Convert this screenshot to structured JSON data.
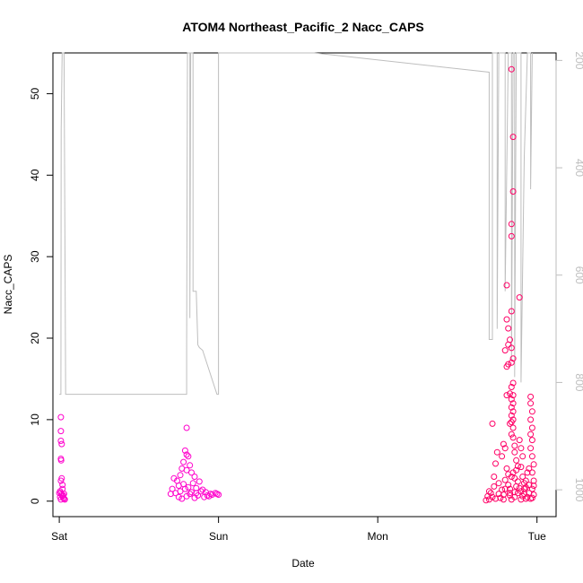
{
  "chart_data": {
    "type": "scatter",
    "title": "ATOM4 Northeast_Pacific_2 Nacc_CAPS",
    "xlabel": "Date",
    "ylabel": "Nacc_CAPS",
    "x_tick_labels": [
      "Sat",
      "Sun",
      "Mon",
      "Tue"
    ],
    "x_tick_days": [
      0,
      1,
      2,
      3
    ],
    "xlim_days": [
      -0.04,
      3.12
    ],
    "ylim": [
      -1.9,
      55
    ],
    "y_ticks": [
      0,
      10,
      20,
      30,
      40,
      50
    ],
    "y2_ticks": [
      200,
      400,
      600,
      800,
      1000
    ],
    "y2lim_reversed": [
      1050,
      186
    ],
    "grid": false,
    "legend": "none",
    "colors": {
      "points_low": "#ff00cc",
      "points_high": "#ff0066",
      "altitude_line": "#bebebe",
      "axis": "#000000"
    },
    "series": [
      {
        "type": "scatter",
        "points": [
          [
            0.01,
            10.3
          ],
          [
            0.01,
            8.6
          ],
          [
            0.01,
            7.4
          ],
          [
            0.015,
            7.0
          ],
          [
            0.01,
            5.2
          ],
          [
            0.012,
            5.0
          ],
          [
            0.015,
            2.8
          ],
          [
            0.01,
            2.5
          ],
          [
            0.02,
            2.0
          ],
          [
            0.005,
            1.2
          ],
          [
            0.01,
            1.0
          ],
          [
            0.015,
            0.8
          ],
          [
            0.02,
            0.6
          ],
          [
            0.025,
            0.4
          ],
          [
            0.03,
            0.3
          ],
          [
            0.005,
            0.5
          ],
          [
            0.01,
            0.2
          ],
          [
            0.02,
            1.5
          ],
          [
            0.03,
            0.9
          ],
          [
            0.035,
            0.2
          ],
          [
            0.0,
            1.0
          ],
          [
            0.025,
            0.7
          ],
          [
            0.8,
            9.0
          ],
          [
            0.79,
            6.2
          ],
          [
            0.8,
            5.7
          ],
          [
            0.81,
            5.5
          ],
          [
            0.78,
            4.8
          ],
          [
            0.77,
            4.0
          ],
          [
            0.82,
            4.4
          ],
          [
            0.8,
            3.8
          ],
          [
            0.83,
            3.5
          ],
          [
            0.85,
            3.0
          ],
          [
            0.76,
            3.2
          ],
          [
            0.74,
            2.5
          ],
          [
            0.72,
            2.8
          ],
          [
            0.75,
            1.9
          ],
          [
            0.78,
            2.1
          ],
          [
            0.79,
            1.5
          ],
          [
            0.81,
            1.7
          ],
          [
            0.84,
            2.2
          ],
          [
            0.86,
            1.6
          ],
          [
            0.88,
            2.4
          ],
          [
            0.9,
            1.4
          ],
          [
            0.92,
            1.1
          ],
          [
            0.95,
            0.9
          ],
          [
            0.98,
            1.0
          ],
          [
            1.0,
            0.8
          ],
          [
            0.73,
            1.0
          ],
          [
            0.75,
            0.5
          ],
          [
            0.77,
            0.3
          ],
          [
            0.8,
            0.6
          ],
          [
            0.82,
            0.9
          ],
          [
            0.85,
            0.4
          ],
          [
            0.87,
            0.7
          ],
          [
            0.89,
            1.2
          ],
          [
            0.91,
            0.5
          ],
          [
            0.94,
            0.6
          ],
          [
            0.96,
            0.8
          ],
          [
            0.99,
            0.9
          ],
          [
            0.71,
            1.5
          ],
          [
            0.7,
            0.9
          ],
          [
            0.76,
            1.2
          ],
          [
            0.83,
            1.1
          ],
          [
            0.86,
            1.0
          ],
          [
            0.93,
            0.7
          ],
          [
            2.72,
            9.5
          ],
          [
            2.75,
            6.0
          ],
          [
            2.74,
            4.6
          ],
          [
            2.73,
            3.0
          ],
          [
            2.71,
            1.0
          ],
          [
            2.7,
            0.2
          ],
          [
            2.72,
            0.5
          ],
          [
            2.76,
            2.2
          ],
          [
            2.78,
            5.5
          ],
          [
            2.79,
            7.0
          ],
          [
            2.8,
            6.5
          ],
          [
            2.81,
            4.0
          ],
          [
            2.82,
            2.0
          ],
          [
            2.83,
            1.0
          ],
          [
            2.77,
            0.4
          ],
          [
            2.79,
            0.8
          ],
          [
            2.8,
            1.5
          ],
          [
            2.81,
            26.5
          ],
          [
            2.81,
            22.3
          ],
          [
            2.82,
            21.2
          ],
          [
            2.82,
            19.2
          ],
          [
            2.81,
            16.5
          ],
          [
            2.82,
            16.8
          ],
          [
            2.83,
            13.2
          ],
          [
            2.83,
            9.5
          ],
          [
            2.84,
            8.2
          ],
          [
            2.8,
            18.5
          ],
          [
            2.81,
            13.0
          ],
          [
            2.84,
            53.0
          ],
          [
            2.85,
            44.7
          ],
          [
            2.85,
            38.0
          ],
          [
            2.84,
            34.0
          ],
          [
            2.84,
            32.5
          ],
          [
            2.84,
            23.3
          ],
          [
            2.83,
            19.8
          ],
          [
            2.84,
            18.8
          ],
          [
            2.85,
            17.5
          ],
          [
            2.84,
            17.0
          ],
          [
            2.85,
            14.5
          ],
          [
            2.84,
            14.0
          ],
          [
            2.85,
            13.0
          ],
          [
            2.84,
            12.5
          ],
          [
            2.85,
            12.0
          ],
          [
            2.84,
            11.5
          ],
          [
            2.85,
            11.0
          ],
          [
            2.84,
            10.5
          ],
          [
            2.85,
            10.0
          ],
          [
            2.84,
            9.7
          ],
          [
            2.85,
            9.0
          ],
          [
            2.85,
            7.8
          ],
          [
            2.86,
            6.8
          ],
          [
            2.86,
            6.0
          ],
          [
            2.87,
            5.0
          ],
          [
            2.88,
            4.3
          ],
          [
            2.85,
            3.5
          ],
          [
            2.86,
            2.8
          ],
          [
            2.87,
            1.8
          ],
          [
            2.88,
            1.0
          ],
          [
            2.86,
            0.5
          ],
          [
            2.84,
            0.2
          ],
          [
            2.83,
            1.5
          ],
          [
            2.84,
            3.0
          ],
          [
            2.89,
            25.0
          ],
          [
            2.89,
            7.5
          ],
          [
            2.9,
            6.5
          ],
          [
            2.91,
            5.5
          ],
          [
            2.9,
            4.2
          ],
          [
            2.91,
            3.0
          ],
          [
            2.92,
            2.2
          ],
          [
            2.9,
            1.2
          ],
          [
            2.91,
            0.6
          ],
          [
            2.92,
            1.5
          ],
          [
            2.93,
            2.5
          ],
          [
            2.94,
            3.5
          ],
          [
            2.93,
            0.3
          ],
          [
            2.96,
            12.8
          ],
          [
            2.96,
            12.0
          ],
          [
            2.97,
            11.0
          ],
          [
            2.96,
            10.0
          ],
          [
            2.97,
            9.0
          ],
          [
            2.96,
            8.2
          ],
          [
            2.97,
            7.5
          ],
          [
            2.96,
            6.5
          ],
          [
            2.97,
            5.5
          ],
          [
            2.98,
            4.5
          ],
          [
            2.97,
            3.5
          ],
          [
            2.98,
            2.5
          ],
          [
            2.97,
            1.5
          ],
          [
            2.98,
            0.8
          ],
          [
            2.96,
            0.3
          ],
          [
            2.95,
            2.0
          ],
          [
            2.95,
            4.0
          ],
          [
            2.68,
            0.1
          ],
          [
            2.69,
            0.6
          ],
          [
            2.7,
            1.2
          ],
          [
            2.73,
            1.8
          ],
          [
            2.74,
            0.3
          ],
          [
            2.76,
            0.9
          ],
          [
            2.78,
            1.4
          ],
          [
            2.79,
            0.2
          ],
          [
            2.8,
            2.6
          ],
          [
            2.82,
            3.3
          ],
          [
            2.83,
            0.7
          ],
          [
            2.86,
            1.1
          ],
          [
            2.87,
            3.8
          ],
          [
            2.88,
            2.4
          ],
          [
            2.89,
            1.6
          ],
          [
            2.9,
            0.2
          ],
          [
            2.92,
            0.9
          ],
          [
            2.93,
            1.7
          ],
          [
            2.94,
            0.5
          ],
          [
            2.95,
            1.0
          ],
          [
            2.97,
            0.4
          ],
          [
            2.98,
            1.9
          ]
        ]
      },
      {
        "type": "line",
        "axis": "right",
        "points": [
          [
            0.0,
            822
          ],
          [
            0.01,
            822
          ],
          [
            0.012,
            330
          ],
          [
            0.018,
            186
          ],
          [
            0.03,
            186
          ],
          [
            0.04,
            822
          ],
          [
            0.8,
            822
          ],
          [
            0.8,
            730
          ],
          [
            0.805,
            186
          ],
          [
            0.82,
            186
          ],
          [
            0.82,
            680
          ],
          [
            0.825,
            186
          ],
          [
            0.84,
            186
          ],
          [
            0.84,
            630
          ],
          [
            0.86,
            630
          ],
          [
            0.87,
            730
          ],
          [
            0.88,
            735
          ],
          [
            0.9,
            740
          ],
          [
            0.99,
            822
          ],
          [
            1.0,
            822
          ],
          [
            1.0,
            186
          ],
          [
            1.6,
            186
          ],
          [
            2.7,
            222
          ],
          [
            2.7,
            720
          ],
          [
            2.72,
            720
          ],
          [
            2.72,
            186
          ],
          [
            2.75,
            186
          ],
          [
            2.75,
            700
          ],
          [
            2.76,
            186
          ],
          [
            2.8,
            186
          ],
          [
            2.8,
            630
          ],
          [
            2.82,
            186
          ],
          [
            2.84,
            186
          ],
          [
            2.84,
            760
          ],
          [
            2.85,
            186
          ],
          [
            2.86,
            186
          ],
          [
            2.86,
            790
          ],
          [
            2.87,
            186
          ],
          [
            2.9,
            186
          ],
          [
            2.9,
            800
          ],
          [
            2.92,
            380
          ],
          [
            2.94,
            186
          ],
          [
            2.96,
            186
          ],
          [
            2.96,
            440
          ],
          [
            2.97,
            186
          ]
        ]
      }
    ]
  }
}
